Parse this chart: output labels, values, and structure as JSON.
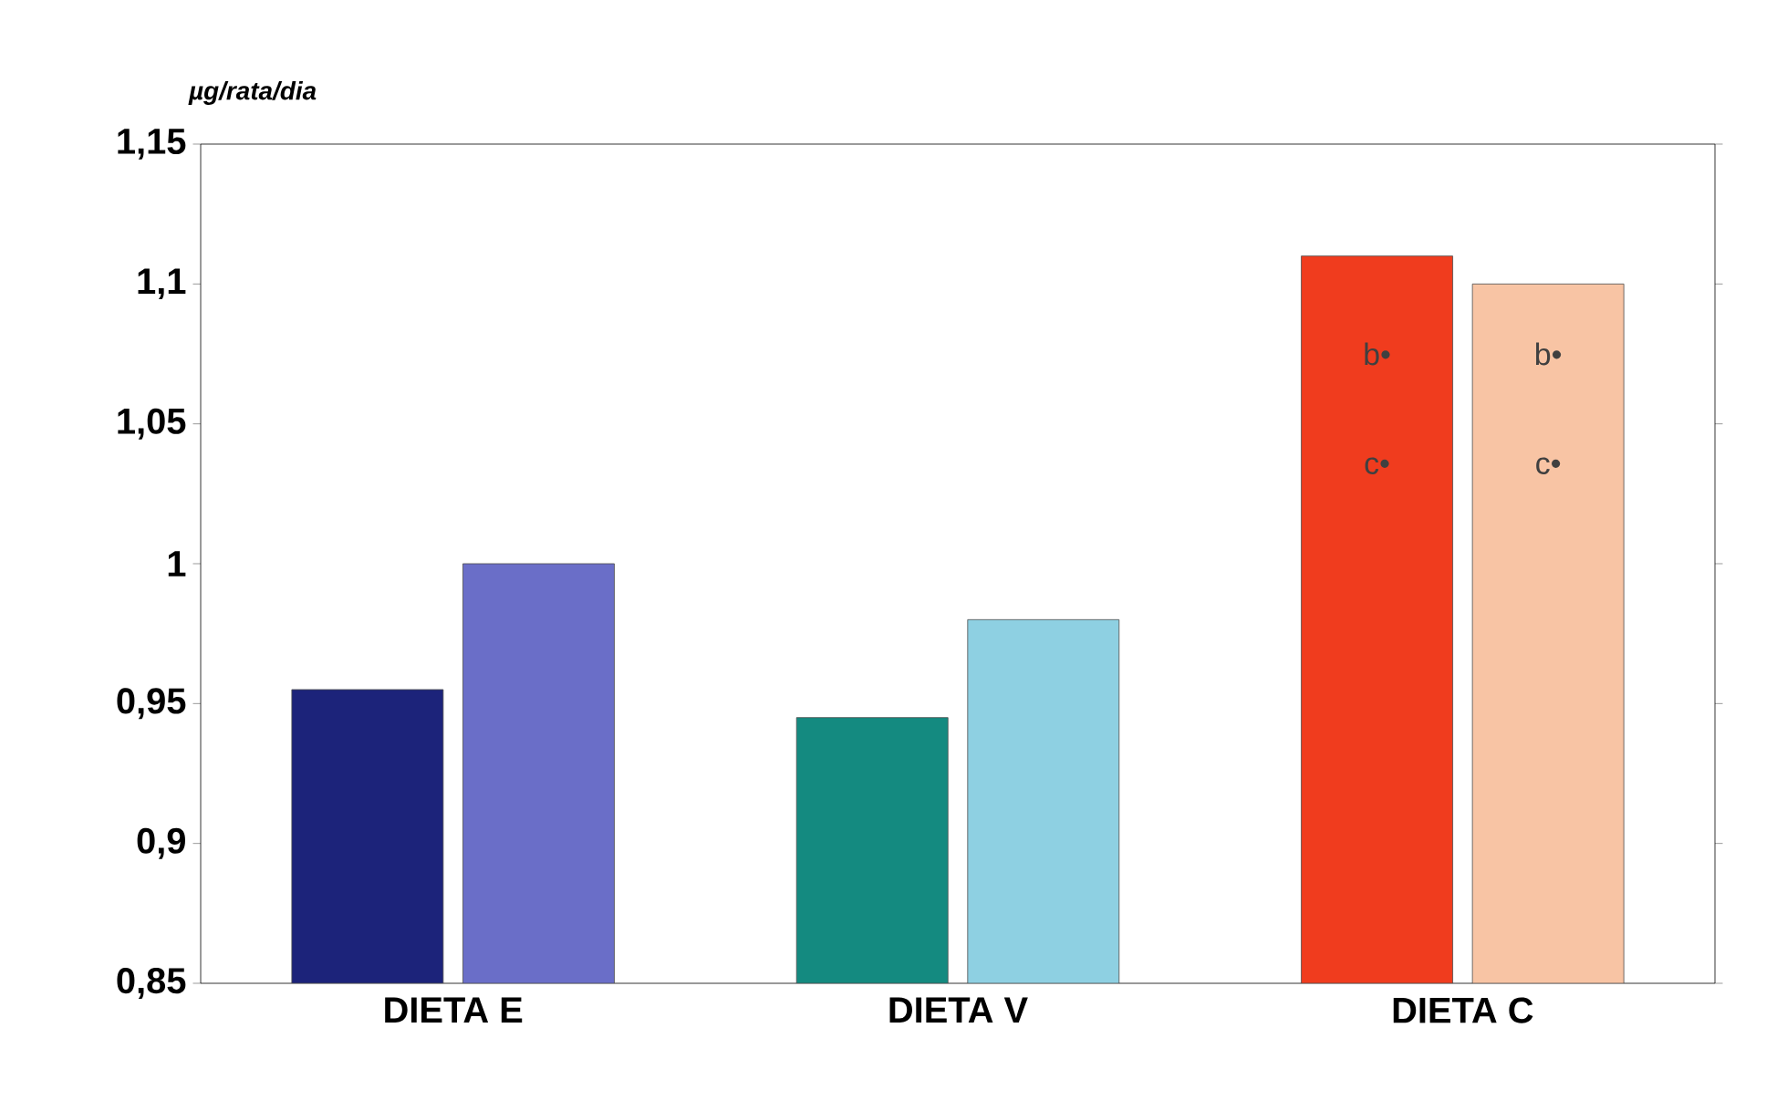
{
  "chart_data": {
    "type": "bar",
    "ylabel": "µg/rata/dia",
    "categories": [
      "DIETA E",
      "DIETA V",
      "DIETA C"
    ],
    "series": [
      {
        "colors": [
          "#1c237a",
          "#148a80",
          "#f03c1e"
        ],
        "values": [
          0.955,
          0.945,
          1.11
        ]
      },
      {
        "colors": [
          "#6a6ec8",
          "#8ed0e2",
          "#f8c4a4"
        ],
        "values": [
          1.0,
          0.98,
          1.1
        ]
      }
    ],
    "ylim": [
      0.85,
      1.15
    ],
    "yticks": [
      {
        "value": 0.85,
        "label": "0,85"
      },
      {
        "value": 0.9,
        "label": "0,9"
      },
      {
        "value": 0.95,
        "label": "0,95"
      },
      {
        "value": 1,
        "label": "1"
      },
      {
        "value": 1.05,
        "label": "1,05"
      },
      {
        "value": 1.1,
        "label": "1,1"
      },
      {
        "value": 1.15,
        "label": "1,15"
      }
    ],
    "annotations": [
      {
        "text": "b•",
        "x": "DIETA C",
        "y": 1.075
      },
      {
        "text": "c•",
        "x": "DIETA C",
        "y": 1.035
      },
      {
        "text": "b•",
        "x": "DIETA C",
        "y": 1.075
      },
      {
        "text": "c•",
        "x": "DIETA C",
        "y": 1.035
      }
    ]
  }
}
